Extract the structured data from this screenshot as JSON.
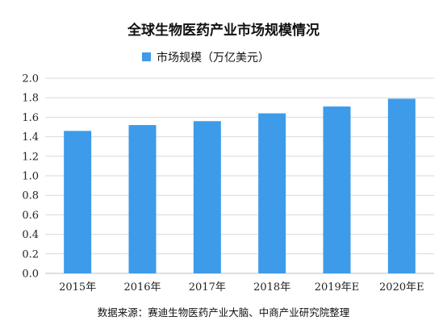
{
  "chart_data": {
    "type": "bar",
    "title": "全球生物医药产业市场规模情况",
    "categories": [
      "2015年",
      "2016年",
      "2017年",
      "2018年",
      "2019年E",
      "2020年E"
    ],
    "series": [
      {
        "name": "市场规模（万亿美元）",
        "color": "#3d9be9",
        "values": [
          1.46,
          1.52,
          1.56,
          1.64,
          1.71,
          1.79
        ]
      }
    ],
    "ylim": [
      0,
      2.0
    ],
    "yticks": [
      "0.0",
      "0.2",
      "0.4",
      "0.6",
      "0.8",
      "1.0",
      "1.2",
      "1.4",
      "1.6",
      "1.8",
      "2.0"
    ],
    "grid": true,
    "legend": "top-center",
    "source": "数据来源：赛迪生物医药产业大脑、中商产业研究院整理"
  }
}
